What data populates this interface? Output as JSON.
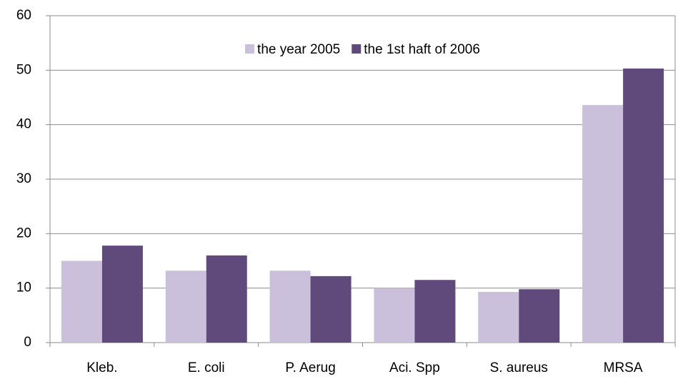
{
  "chart_data": {
    "type": "bar",
    "categories": [
      "Kleb.",
      "E. coli",
      "P. Aerug",
      "Aci. Spp",
      "S. aureus",
      "MRSA"
    ],
    "series": [
      {
        "name": "the year 2005",
        "color": "#cbc0dc",
        "values": [
          15,
          13.2,
          13.2,
          10,
          9.3,
          43.6
        ]
      },
      {
        "name": "the 1st haft of 2006",
        "color": "#604a7b",
        "values": [
          17.8,
          16,
          12.2,
          11.5,
          9.8,
          50.3
        ]
      }
    ],
    "ylim": [
      0,
      60
    ],
    "yticks": [
      0,
      10,
      20,
      30,
      40,
      50,
      60
    ],
    "grid": true,
    "legend": "top"
  }
}
